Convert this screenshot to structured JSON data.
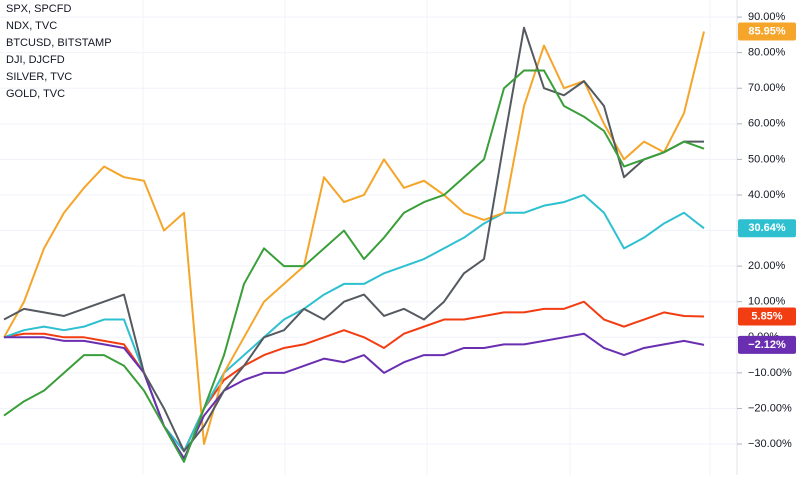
{
  "chart_data": {
    "type": "line",
    "ylim": [
      -38.7,
      94.8
    ],
    "yticks": [
      {
        "value": 90,
        "label": "90.00%"
      },
      {
        "value": 80,
        "label": "80.00%"
      },
      {
        "value": 70,
        "label": "70.00%"
      },
      {
        "value": 60,
        "label": "60.00%"
      },
      {
        "value": 50,
        "label": "50.00%"
      },
      {
        "value": 40,
        "label": "40.00%"
      },
      {
        "value": 30,
        "label": "30.00%"
      },
      {
        "value": 20,
        "label": "20.00%"
      },
      {
        "value": 10,
        "label": "10.00%"
      },
      {
        "value": 0,
        "label": "0.00%"
      },
      {
        "value": -10,
        "label": "−10.00%"
      },
      {
        "value": -20,
        "label": "−20.00%"
      },
      {
        "value": -30,
        "label": "−30.00%"
      }
    ],
    "series": [
      {
        "name": "SPX, SPCFD",
        "color": "#f23d12",
        "values": [
          0,
          1,
          1,
          0,
          0,
          -1,
          -2,
          -10,
          -25,
          -32,
          -20,
          -12,
          -8,
          -5,
          -3,
          -2,
          0,
          2,
          0,
          -3,
          1,
          3,
          5,
          5,
          6,
          7,
          7,
          8,
          8,
          10,
          5,
          3,
          5,
          7,
          6,
          5.85
        ],
        "value_labels": [
          null,
          null,
          null,
          null,
          null,
          null,
          null,
          null,
          null,
          null,
          null,
          null,
          null,
          null,
          null,
          null,
          null,
          null,
          null,
          null,
          null,
          null,
          null,
          null,
          null,
          null,
          null,
          null,
          null,
          null,
          null,
          null,
          null,
          null,
          null,
          "5.85%"
        ]
      },
      {
        "name": "NDX, TVC",
        "color": "#2ec0d0",
        "values": [
          0,
          2,
          3,
          2,
          3,
          5,
          5,
          -10,
          -25,
          -32,
          -20,
          -10,
          -5,
          0,
          5,
          8,
          12,
          15,
          15,
          18,
          20,
          22,
          25,
          28,
          32,
          35,
          35,
          37,
          38,
          40,
          35,
          25,
          28,
          32,
          35,
          30.64
        ],
        "value_labels": [
          null,
          null,
          null,
          null,
          null,
          null,
          null,
          null,
          null,
          null,
          null,
          null,
          null,
          null,
          null,
          null,
          null,
          null,
          null,
          null,
          null,
          null,
          null,
          null,
          null,
          null,
          null,
          null,
          null,
          null,
          null,
          null,
          null,
          null,
          null,
          "30.64%"
        ]
      },
      {
        "name": "BTCUSD, BITSTAMP",
        "color": "#f5a52a",
        "values": [
          0,
          10,
          25,
          35,
          42,
          48,
          45,
          44,
          30,
          35,
          -30,
          -10,
          0,
          10,
          15,
          20,
          45,
          38,
          40,
          50,
          42,
          44,
          40,
          35,
          33,
          35,
          65,
          82,
          70,
          72,
          60,
          50,
          55,
          52,
          63,
          85.95
        ],
        "value_labels": [
          null,
          null,
          null,
          null,
          null,
          null,
          null,
          null,
          null,
          null,
          null,
          null,
          null,
          null,
          null,
          null,
          null,
          null,
          null,
          null,
          null,
          null,
          null,
          null,
          null,
          null,
          null,
          null,
          null,
          null,
          null,
          null,
          null,
          null,
          null,
          "85.95%"
        ]
      },
      {
        "name": "DJI, DJCFD",
        "color": "#6a2fb0",
        "values": [
          0,
          0,
          0,
          -1,
          -1,
          -2,
          -3,
          -10,
          -25,
          -34,
          -22,
          -15,
          -12,
          -10,
          -10,
          -8,
          -6,
          -7,
          -5,
          -10,
          -7,
          -5,
          -5,
          -3,
          -3,
          -2,
          -2,
          -1,
          0,
          1,
          -3,
          -5,
          -3,
          -2,
          -1,
          -2.12
        ],
        "value_labels": [
          null,
          null,
          null,
          null,
          null,
          null,
          null,
          null,
          null,
          null,
          null,
          null,
          null,
          null,
          null,
          null,
          null,
          null,
          null,
          null,
          null,
          null,
          null,
          null,
          null,
          null,
          null,
          null,
          null,
          null,
          null,
          null,
          null,
          null,
          null,
          "−2.12%"
        ]
      },
      {
        "name": "SILVER, TVC",
        "color": "#555a60",
        "values": [
          5,
          8,
          7,
          6,
          8,
          10,
          12,
          -10,
          -20,
          -32,
          -25,
          -15,
          -8,
          0,
          2,
          8,
          5,
          10,
          12,
          6,
          8,
          5,
          10,
          18,
          22,
          55,
          87,
          70,
          68,
          72,
          65,
          45,
          50,
          52,
          55,
          55
        ]
      },
      {
        "name": "GOLD, TVC",
        "color": "#3a9e3a",
        "values": [
          -22,
          -18,
          -15,
          -10,
          -5,
          -5,
          -8,
          -15,
          -25,
          -35,
          -20,
          -5,
          15,
          25,
          20,
          20,
          25,
          30,
          22,
          28,
          35,
          38,
          40,
          45,
          50,
          70,
          75,
          75,
          65,
          62,
          58,
          48,
          50,
          52,
          55,
          53
        ]
      }
    ]
  }
}
